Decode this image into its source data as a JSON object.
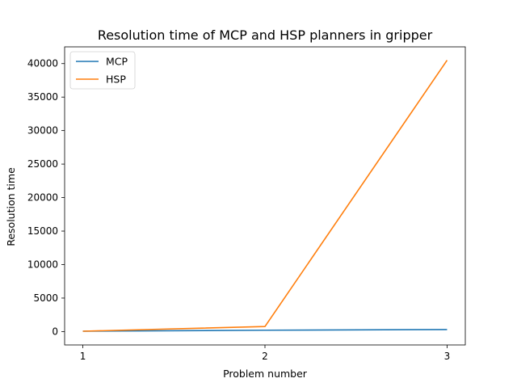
{
  "chart_data": {
    "type": "line",
    "title": "Resolution time of MCP and HSP planners in gripper",
    "xlabel": "Problem number",
    "ylabel": "Resolution time",
    "x": [
      1,
      2,
      3
    ],
    "x_tick_labels": [
      "1",
      "2",
      "3"
    ],
    "y_ticks": [
      0,
      5000,
      10000,
      15000,
      20000,
      25000,
      30000,
      35000,
      40000
    ],
    "y_tick_labels": [
      "0",
      "5000",
      "10000",
      "15000",
      "20000",
      "25000",
      "30000",
      "35000",
      "40000"
    ],
    "xlim": [
      0.9,
      3.1
    ],
    "ylim": [
      -2000,
      42500
    ],
    "grid": false,
    "legend_position": "upper-left",
    "series": [
      {
        "name": "MCP",
        "color": "#1f77b4",
        "values": [
          50,
          200,
          300
        ]
      },
      {
        "name": "HSP",
        "color": "#ff7f0e",
        "values": [
          50,
          750,
          40500
        ]
      }
    ]
  }
}
